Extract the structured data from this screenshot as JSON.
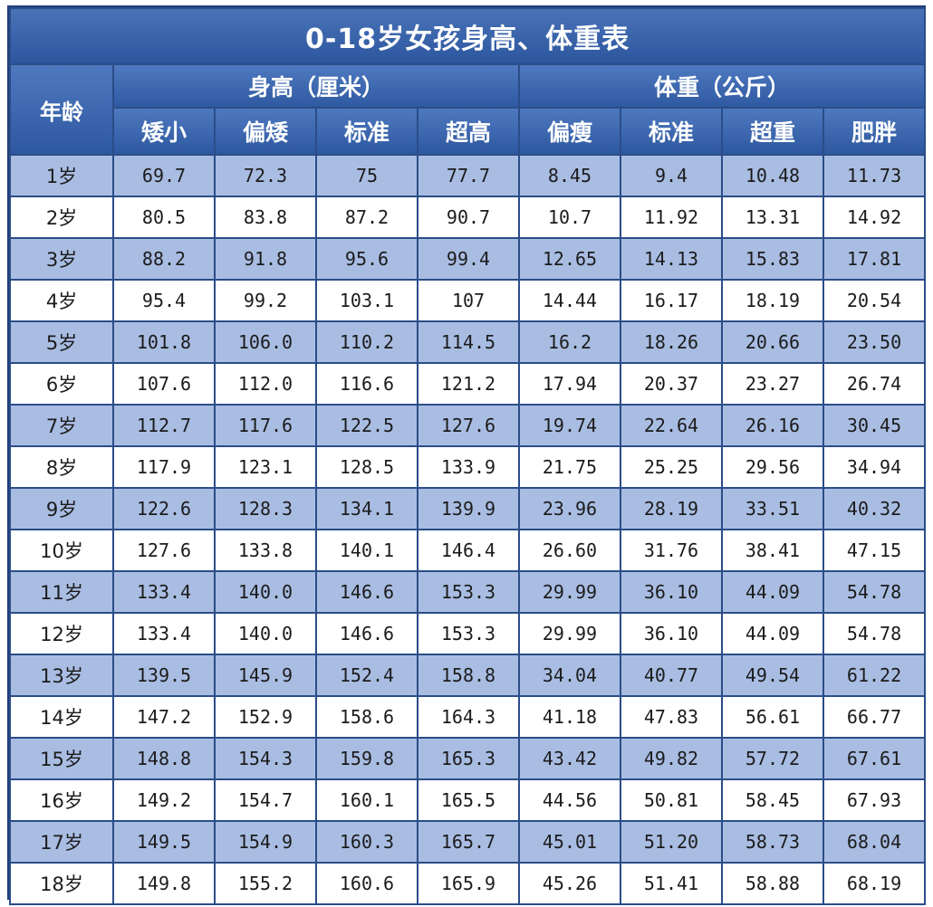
{
  "title": "0-18岁女孩身高、体重表",
  "header": {
    "age_label": "年龄",
    "height_group": "身高（厘米）",
    "weight_group": "体重（公斤）",
    "height_cols": [
      "矮小",
      "偏矮",
      "标准",
      "超高"
    ],
    "weight_cols": [
      "偏瘦",
      "标准",
      "超重",
      "肥胖"
    ]
  },
  "rows": [
    {
      "age": "1岁",
      "h": [
        "69.7",
        "72.3",
        "75",
        "77.7"
      ],
      "w": [
        "8.45",
        "9.4",
        "10.48",
        "11.73"
      ]
    },
    {
      "age": "2岁",
      "h": [
        "80.5",
        "83.8",
        "87.2",
        "90.7"
      ],
      "w": [
        "10.7",
        "11.92",
        "13.31",
        "14.92"
      ]
    },
    {
      "age": "3岁",
      "h": [
        "88.2",
        "91.8",
        "95.6",
        "99.4"
      ],
      "w": [
        "12.65",
        "14.13",
        "15.83",
        "17.81"
      ]
    },
    {
      "age": "4岁",
      "h": [
        "95.4",
        "99.2",
        "103.1",
        "107"
      ],
      "w": [
        "14.44",
        "16.17",
        "18.19",
        "20.54"
      ]
    },
    {
      "age": "5岁",
      "h": [
        "101.8",
        "106.0",
        "110.2",
        "114.5"
      ],
      "w": [
        "16.2",
        "18.26",
        "20.66",
        "23.50"
      ]
    },
    {
      "age": "6岁",
      "h": [
        "107.6",
        "112.0",
        "116.6",
        "121.2"
      ],
      "w": [
        "17.94",
        "20.37",
        "23.27",
        "26.74"
      ]
    },
    {
      "age": "7岁",
      "h": [
        "112.7",
        "117.6",
        "122.5",
        "127.6"
      ],
      "w": [
        "19.74",
        "22.64",
        "26.16",
        "30.45"
      ]
    },
    {
      "age": "8岁",
      "h": [
        "117.9",
        "123.1",
        "128.5",
        "133.9"
      ],
      "w": [
        "21.75",
        "25.25",
        "29.56",
        "34.94"
      ]
    },
    {
      "age": "9岁",
      "h": [
        "122.6",
        "128.3",
        "134.1",
        "139.9"
      ],
      "w": [
        "23.96",
        "28.19",
        "33.51",
        "40.32"
      ]
    },
    {
      "age": "10岁",
      "h": [
        "127.6",
        "133.8",
        "140.1",
        "146.4"
      ],
      "w": [
        "26.60",
        "31.76",
        "38.41",
        "47.15"
      ]
    },
    {
      "age": "11岁",
      "h": [
        "133.4",
        "140.0",
        "146.6",
        "153.3"
      ],
      "w": [
        "29.99",
        "36.10",
        "44.09",
        "54.78"
      ]
    },
    {
      "age": "12岁",
      "h": [
        "133.4",
        "140.0",
        "146.6",
        "153.3"
      ],
      "w": [
        "29.99",
        "36.10",
        "44.09",
        "54.78"
      ]
    },
    {
      "age": "13岁",
      "h": [
        "139.5",
        "145.9",
        "152.4",
        "158.8"
      ],
      "w": [
        "34.04",
        "40.77",
        "49.54",
        "61.22"
      ]
    },
    {
      "age": "14岁",
      "h": [
        "147.2",
        "152.9",
        "158.6",
        "164.3"
      ],
      "w": [
        "41.18",
        "47.83",
        "56.61",
        "66.77"
      ]
    },
    {
      "age": "15岁",
      "h": [
        "148.8",
        "154.3",
        "159.8",
        "165.3"
      ],
      "w": [
        "43.42",
        "49.82",
        "57.72",
        "67.61"
      ]
    },
    {
      "age": "16岁",
      "h": [
        "149.2",
        "154.7",
        "160.1",
        "165.5"
      ],
      "w": [
        "44.56",
        "50.81",
        "58.45",
        "67.93"
      ]
    },
    {
      "age": "17岁",
      "h": [
        "149.5",
        "154.9",
        "160.3",
        "165.7"
      ],
      "w": [
        "45.01",
        "51.20",
        "58.73",
        "68.04"
      ]
    },
    {
      "age": "18岁",
      "h": [
        "149.8",
        "155.2",
        "160.6",
        "165.9"
      ],
      "w": [
        "45.26",
        "51.41",
        "58.88",
        "68.19"
      ]
    }
  ]
}
